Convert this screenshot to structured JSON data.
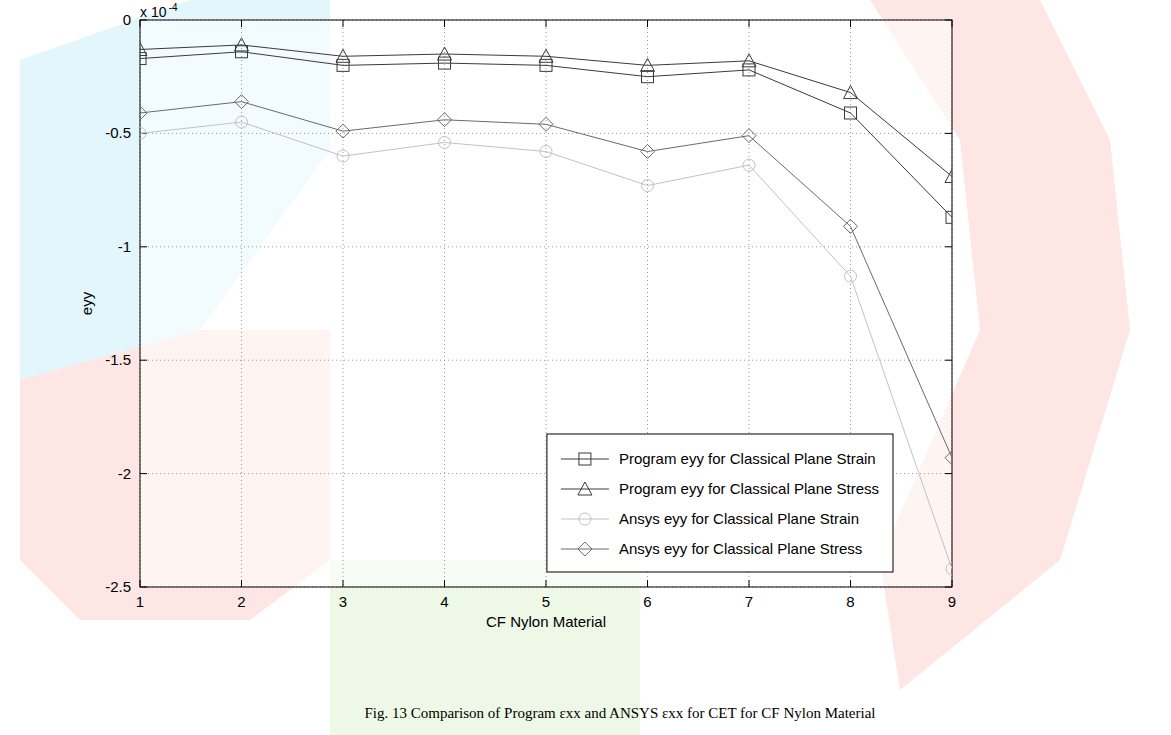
{
  "chart_data": {
    "type": "line",
    "ylabel": "eyy",
    "xlabel": "CF Nylon Material",
    "y_multiplier": {
      "text": "x 10",
      "exponent": "-4"
    },
    "caption": "Fig. 13 Comparison of Program εxx and ANSYS εxx for CET for CF Nylon Material",
    "x": [
      1,
      2,
      3,
      4,
      5,
      6,
      7,
      8,
      9
    ],
    "series": [
      {
        "name": "Program eyy for Classical Plane Strain",
        "color": "#3a3a3a",
        "marker": "square",
        "line_style": "solid",
        "values": [
          -0.17,
          -0.14,
          -0.2,
          -0.19,
          -0.2,
          -0.25,
          -0.22,
          -0.41,
          -0.87
        ]
      },
      {
        "name": "Program eyy for Classical Plane Stress",
        "color": "#3a3a3a",
        "marker": "triangle",
        "line_style": "solid",
        "values": [
          -0.13,
          -0.11,
          -0.16,
          -0.15,
          -0.16,
          -0.2,
          -0.18,
          -0.32,
          -0.69
        ]
      },
      {
        "name": "Ansys eyy for Classical Plane Strain",
        "color": "#c2c2c2",
        "marker": "circle",
        "line_style": "solid",
        "values": [
          -0.5,
          -0.45,
          -0.6,
          -0.54,
          -0.58,
          -0.73,
          -0.64,
          -1.13,
          -2.42
        ]
      },
      {
        "name": "Ansys eyy for Classical Plane Stress",
        "color": "#6a6a6a",
        "marker": "diamond",
        "line_style": "solid",
        "values": [
          -0.41,
          -0.36,
          -0.49,
          -0.44,
          -0.46,
          -0.58,
          -0.51,
          -0.91,
          -1.93
        ]
      }
    ],
    "xlim": [
      1,
      9
    ],
    "ylim": [
      -2.5,
      0
    ],
    "xticks": [
      1,
      2,
      3,
      4,
      5,
      6,
      7,
      8,
      9
    ],
    "yticks": [
      -2.5,
      -2,
      -1.5,
      -1,
      -0.5,
      0
    ],
    "grid": true,
    "legend": "lower right"
  }
}
